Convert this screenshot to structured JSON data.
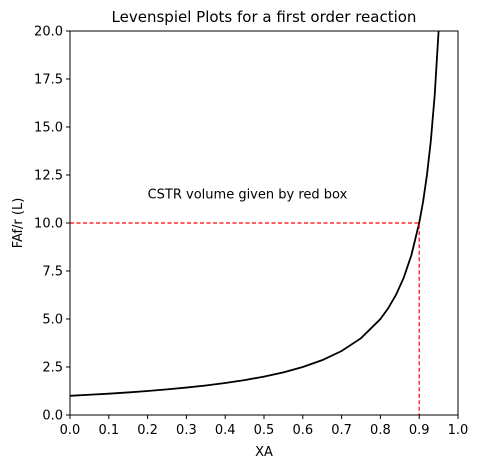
{
  "chart_data": {
    "type": "line",
    "title": "Levenspiel Plots for a first order reaction",
    "xlabel": "XA",
    "ylabel": "FAf/r (L)",
    "xlim": [
      0.0,
      1.0
    ],
    "ylim": [
      0.0,
      20.0
    ],
    "x_ticks": [
      "0.0",
      "0.1",
      "0.2",
      "0.3",
      "0.4",
      "0.5",
      "0.6",
      "0.7",
      "0.8",
      "0.9",
      "1.0"
    ],
    "y_ticks": [
      "0.0",
      "2.5",
      "5.0",
      "7.5",
      "10.0",
      "12.5",
      "15.0",
      "17.5",
      "20.0"
    ],
    "grid": false,
    "series": [
      {
        "color": "#000000",
        "style": "solid",
        "x": [
          0.0,
          0.05,
          0.1,
          0.15,
          0.2,
          0.25,
          0.3,
          0.35,
          0.4,
          0.45,
          0.5,
          0.55,
          0.6,
          0.65,
          0.7,
          0.75,
          0.8,
          0.82,
          0.84,
          0.86,
          0.88,
          0.9,
          0.91,
          0.92,
          0.93,
          0.94,
          0.95
        ],
        "y": [
          1.0,
          1.053,
          1.111,
          1.176,
          1.25,
          1.333,
          1.429,
          1.538,
          1.667,
          1.818,
          2.0,
          2.222,
          2.5,
          2.857,
          3.333,
          4.0,
          5.0,
          5.556,
          6.25,
          7.143,
          8.333,
          10.0,
          11.111,
          12.5,
          14.286,
          16.667,
          20.0
        ]
      },
      {
        "color": "#ff0000",
        "style": "dashed",
        "x": [
          0.0,
          0.9,
          0.9
        ],
        "y": [
          10.0,
          10.0,
          0.0
        ]
      }
    ],
    "annotations": [
      {
        "text": "CSTR volume given by red box",
        "x": 0.2,
        "y": 11.5
      }
    ]
  }
}
